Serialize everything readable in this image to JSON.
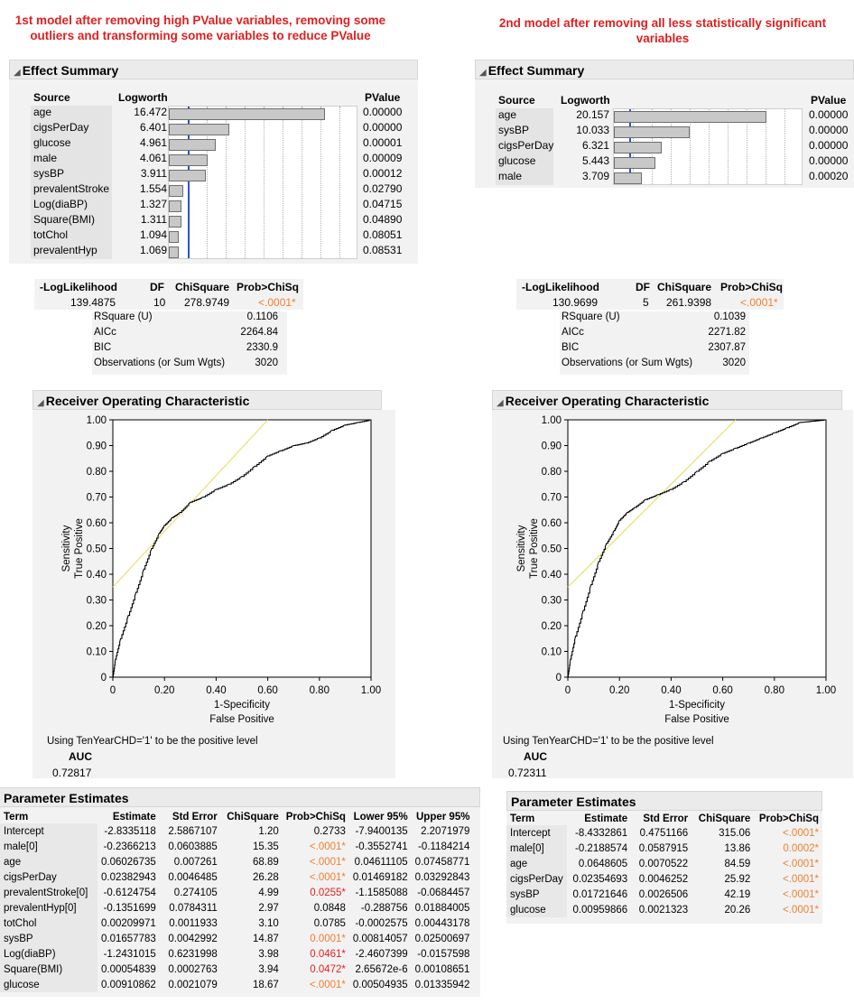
{
  "left": {
    "title_line1": "1st model after removing high PValue variables, removing some",
    "title_line2": "outliers and transforming some variables to reduce PValue",
    "effect_summary": {
      "header": "Effect Summary",
      "col_source": "Source",
      "col_logworth": "Logworth",
      "col_pvalue": "PValue",
      "rows": [
        {
          "source": "age",
          "logworth": "16.472",
          "pvalue": "0.00000",
          "lw": 16.472
        },
        {
          "source": "cigsPerDay",
          "logworth": "6.401",
          "pvalue": "0.00000",
          "lw": 6.401
        },
        {
          "source": "glucose",
          "logworth": "4.961",
          "pvalue": "0.00001",
          "lw": 4.961
        },
        {
          "source": "male",
          "logworth": "4.061",
          "pvalue": "0.00009",
          "lw": 4.061
        },
        {
          "source": "sysBP",
          "logworth": "3.911",
          "pvalue": "0.00012",
          "lw": 3.911
        },
        {
          "source": "prevalentStroke",
          "logworth": "1.554",
          "pvalue": "0.02790",
          "lw": 1.554
        },
        {
          "source": "Log(diaBP)",
          "logworth": "1.327",
          "pvalue": "0.04715",
          "lw": 1.327
        },
        {
          "source": "Square(BMI)",
          "logworth": "1.311",
          "pvalue": "0.04890",
          "lw": 1.311
        },
        {
          "source": "totChol",
          "logworth": "1.094",
          "pvalue": "0.08051",
          "lw": 1.094
        },
        {
          "source": "prevalentHyp",
          "logworth": "1.069",
          "pvalue": "0.08531",
          "lw": 1.069
        }
      ]
    },
    "fit": {
      "col_loglik": "-LogLikelihood",
      "col_df": "DF",
      "col_chisq": "ChiSquare",
      "col_prob": "Prob>ChiSq",
      "loglik": "139.4875",
      "df": "10",
      "chisq": "278.9749",
      "prob": "<.0001*",
      "stats": [
        {
          "label": "RSquare (U)",
          "value": "0.1106"
        },
        {
          "label": "AICc",
          "value": "2264.84"
        },
        {
          "label": "BIC",
          "value": "2330.9"
        },
        {
          "label": "Observations (or Sum Wgts)",
          "value": "3020"
        }
      ]
    },
    "roc": {
      "header": "Receiver Operating Characteristic",
      "ylabel1": "Sensitivity",
      "ylabel2": "True Positive",
      "xlabel1": "1-Specificity",
      "xlabel2": "False Positive",
      "note": "Using TenYearCHD='1' to be the positive level",
      "auc_label": "AUC",
      "auc_value": "0.72817"
    },
    "params": {
      "header": "Parameter Estimates",
      "cols": [
        "Term",
        "Estimate",
        "Std Error",
        "ChiSquare",
        "Prob>ChiSq",
        "Lower 95%",
        "Upper 95%"
      ],
      "rows": [
        {
          "term": "Intercept",
          "est": "-2.8335118",
          "se": "2.5867107",
          "chi": "1.20",
          "prob": "0.2733",
          "sig": "",
          "lo": "-7.9400135",
          "hi": "2.2071979"
        },
        {
          "term": "male[0]",
          "est": "-0.2366213",
          "se": "0.0603885",
          "chi": "15.35",
          "prob": "<.0001*",
          "sig": "orange",
          "lo": "-0.3552741",
          "hi": "-0.1184214"
        },
        {
          "term": "age",
          "est": "0.06026735",
          "se": "0.007261",
          "chi": "68.89",
          "prob": "<.0001*",
          "sig": "orange",
          "lo": "0.04611105",
          "hi": "0.07458771"
        },
        {
          "term": "cigsPerDay",
          "est": "0.02382943",
          "se": "0.0046485",
          "chi": "26.28",
          "prob": "<.0001*",
          "sig": "orange",
          "lo": "0.01469182",
          "hi": "0.03292843"
        },
        {
          "term": "prevalentStroke[0]",
          "est": "-0.6124754",
          "se": "0.274105",
          "chi": "4.99",
          "prob": "0.0255*",
          "sig": "red",
          "lo": "-1.1585088",
          "hi": "-0.0684457"
        },
        {
          "term": "prevalentHyp[0]",
          "est": "-0.1351699",
          "se": "0.0784311",
          "chi": "2.97",
          "prob": "0.0848",
          "sig": "",
          "lo": "-0.288756",
          "hi": "0.01884005"
        },
        {
          "term": "totChol",
          "est": "0.00209971",
          "se": "0.0011933",
          "chi": "3.10",
          "prob": "0.0785",
          "sig": "",
          "lo": "-0.0002575",
          "hi": "0.00443178"
        },
        {
          "term": "sysBP",
          "est": "0.01657783",
          "se": "0.0042992",
          "chi": "14.87",
          "prob": "0.0001*",
          "sig": "orange",
          "lo": "0.00814057",
          "hi": "0.02500697"
        },
        {
          "term": "Log(diaBP)",
          "est": "-1.2431015",
          "se": "0.6231998",
          "chi": "3.98",
          "prob": "0.0461*",
          "sig": "red",
          "lo": "-2.4607399",
          "hi": "-0.0157598"
        },
        {
          "term": "Square(BMI)",
          "est": "0.00054839",
          "se": "0.0002763",
          "chi": "3.94",
          "prob": "0.0472*",
          "sig": "red",
          "lo": "2.65672e-6",
          "hi": "0.00108651"
        },
        {
          "term": "glucose",
          "est": "0.00910862",
          "se": "0.0021079",
          "chi": "18.67",
          "prob": "<.0001*",
          "sig": "orange",
          "lo": "0.00504935",
          "hi": "0.01335942"
        }
      ]
    }
  },
  "right": {
    "title": "2nd model after removing all less statistically significant variables",
    "effect_summary": {
      "header": "Effect Summary",
      "col_source": "Source",
      "col_logworth": "Logworth",
      "col_pvalue": "PValue",
      "rows": [
        {
          "source": "age",
          "logworth": "20.157",
          "pvalue": "0.00000",
          "lw": 20.157
        },
        {
          "source": "sysBP",
          "logworth": "10.033",
          "pvalue": "0.00000",
          "lw": 10.033
        },
        {
          "source": "cigsPerDay",
          "logworth": "6.321",
          "pvalue": "0.00000",
          "lw": 6.321
        },
        {
          "source": "glucose",
          "logworth": "5.443",
          "pvalue": "0.00000",
          "lw": 5.443
        },
        {
          "source": "male",
          "logworth": "3.709",
          "pvalue": "0.00020",
          "lw": 3.709
        }
      ]
    },
    "fit": {
      "col_loglik": "-LogLikelihood",
      "col_df": "DF",
      "col_chisq": "ChiSquare",
      "col_prob": "Prob>ChiSq",
      "loglik": "130.9699",
      "df": "5",
      "chisq": "261.9398",
      "prob": "<.0001*",
      "stats": [
        {
          "label": "RSquare (U)",
          "value": "0.1039"
        },
        {
          "label": "AICc",
          "value": "2271.82"
        },
        {
          "label": "BIC",
          "value": "2307.87"
        },
        {
          "label": "Observations (or Sum Wgts)",
          "value": "3020"
        }
      ]
    },
    "roc": {
      "header": "Receiver Operating Characteristic",
      "ylabel1": "Sensitivity",
      "ylabel2": "True Positive",
      "xlabel1": "1-Specificity",
      "xlabel2": "False Positive",
      "note": "Using TenYearCHD='1' to be the positive level",
      "auc_label": "AUC",
      "auc_value": "0.72311"
    },
    "params": {
      "header": "Parameter Estimates",
      "cols": [
        "Term",
        "Estimate",
        "Std Error",
        "ChiSquare",
        "Prob>ChiSq"
      ],
      "rows": [
        {
          "term": "Intercept",
          "est": "-8.4332861",
          "se": "0.4751166",
          "chi": "315.06",
          "prob": "<.0001*",
          "sig": "orange"
        },
        {
          "term": "male[0]",
          "est": "-0.2188574",
          "se": "0.0587915",
          "chi": "13.86",
          "prob": "0.0002*",
          "sig": "orange"
        },
        {
          "term": "age",
          "est": "0.0648605",
          "se": "0.0070522",
          "chi": "84.59",
          "prob": "<.0001*",
          "sig": "orange"
        },
        {
          "term": "cigsPerDay",
          "est": "0.02354693",
          "se": "0.0046252",
          "chi": "25.92",
          "prob": "<.0001*",
          "sig": "orange"
        },
        {
          "term": "sysBP",
          "est": "0.01721646",
          "se": "0.0026506",
          "chi": "42.19",
          "prob": "<.0001*",
          "sig": "orange"
        },
        {
          "term": "glucose",
          "est": "0.00959866",
          "se": "0.0021323",
          "chi": "20.26",
          "prob": "<.0001*",
          "sig": "orange"
        }
      ]
    }
  },
  "chart_data": [
    {
      "type": "line",
      "title": "Receiver Operating Characteristic",
      "xlabel": "1-Specificity False Positive",
      "ylabel": "Sensitivity True Positive",
      "xlim": [
        0,
        1
      ],
      "ylim": [
        0,
        1
      ],
      "xticks": [
        "0",
        "0.20",
        "0.40",
        "0.60",
        "0.80",
        "1.00"
      ],
      "yticks": [
        "0",
        "0.10",
        "0.20",
        "0.30",
        "0.40",
        "0.50",
        "0.60",
        "0.70",
        "0.80",
        "0.90",
        "1.00"
      ],
      "series": [
        {
          "x": [
            0,
            0.01,
            0.03,
            0.06,
            0.09,
            0.12,
            0.15,
            0.18,
            0.2,
            0.23,
            0.26,
            0.3,
            0.35,
            0.4,
            0.45,
            0.5,
            0.55,
            0.6,
            0.65,
            0.7,
            0.75,
            0.8,
            0.85,
            0.9,
            0.95,
            1.0
          ],
          "y": [
            0,
            0.07,
            0.15,
            0.24,
            0.33,
            0.42,
            0.5,
            0.56,
            0.59,
            0.62,
            0.64,
            0.68,
            0.7,
            0.73,
            0.75,
            0.78,
            0.82,
            0.86,
            0.88,
            0.9,
            0.91,
            0.93,
            0.96,
            0.98,
            0.99,
            1.0
          ]
        },
        {
          "x": [
            0,
            0.6
          ],
          "y": [
            0.35,
            1.0
          ]
        }
      ]
    },
    {
      "type": "line",
      "title": "Receiver Operating Characteristic",
      "xlabel": "1-Specificity False Positive",
      "ylabel": "Sensitivity True Positive",
      "xlim": [
        0,
        1
      ],
      "ylim": [
        0,
        1
      ],
      "xticks": [
        "0",
        "0.20",
        "0.40",
        "0.60",
        "0.80",
        "1.00"
      ],
      "yticks": [
        "0",
        "0.10",
        "0.20",
        "0.30",
        "0.40",
        "0.50",
        "0.60",
        "0.70",
        "0.80",
        "0.90",
        "1.00"
      ],
      "series": [
        {
          "x": [
            0,
            0.01,
            0.03,
            0.06,
            0.09,
            0.12,
            0.15,
            0.18,
            0.2,
            0.23,
            0.26,
            0.3,
            0.35,
            0.4,
            0.45,
            0.5,
            0.55,
            0.6,
            0.65,
            0.7,
            0.75,
            0.8,
            0.85,
            0.9,
            0.95,
            1.0
          ],
          "y": [
            0,
            0.07,
            0.16,
            0.26,
            0.36,
            0.45,
            0.52,
            0.57,
            0.61,
            0.64,
            0.66,
            0.69,
            0.71,
            0.73,
            0.76,
            0.8,
            0.84,
            0.87,
            0.89,
            0.91,
            0.93,
            0.95,
            0.97,
            0.99,
            0.995,
            1.0
          ]
        },
        {
          "x": [
            0,
            0.65
          ],
          "y": [
            0.35,
            1.0
          ]
        }
      ]
    }
  ]
}
